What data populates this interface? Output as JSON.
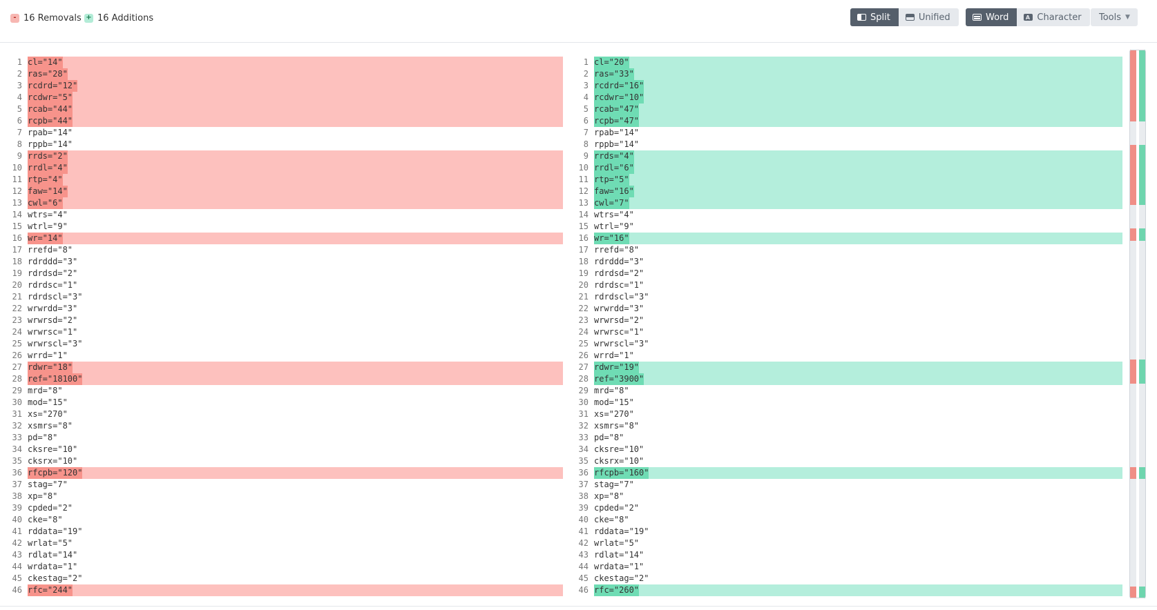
{
  "header": {
    "removals_icon": "-",
    "removals_label": "16 Removals",
    "additions_icon": "+",
    "additions_label": "16 Additions",
    "view_modes": [
      {
        "label": "Split",
        "icon": "split-view-icon",
        "active": true
      },
      {
        "label": "Unified",
        "icon": "unified-view-icon",
        "active": false
      }
    ],
    "granularity": [
      {
        "label": "Word",
        "icon": "word-mode-icon",
        "active": true
      },
      {
        "label": "Character",
        "icon": "character-mode-icon",
        "active": false
      }
    ],
    "tools_label": "Tools",
    "tools_chevron": "▼"
  },
  "colors": {
    "removed_line": "#fdc1be",
    "removed_word": "#f7938b",
    "added_line": "#b4eedc",
    "added_word": "#6fdcb4"
  },
  "diff": {
    "left": [
      {
        "n": "1",
        "t": "cl=\"14\"",
        "c": true
      },
      {
        "n": "2",
        "t": "ras=\"28\"",
        "c": true
      },
      {
        "n": "3",
        "t": "rcdrd=\"12\"",
        "c": true
      },
      {
        "n": "4",
        "t": "rcdwr=\"5\"",
        "c": true
      },
      {
        "n": "5",
        "t": "rcab=\"44\"",
        "c": true
      },
      {
        "n": "6",
        "t": "rcpb=\"44\"",
        "c": true
      },
      {
        "n": "7",
        "t": "rpab=\"14\"",
        "c": false
      },
      {
        "n": "8",
        "t": "rppb=\"14\"",
        "c": false
      },
      {
        "n": "9",
        "t": "rrds=\"2\"",
        "c": true
      },
      {
        "n": "10",
        "t": "rrdl=\"4\"",
        "c": true
      },
      {
        "n": "11",
        "t": "rtp=\"4\"",
        "c": true
      },
      {
        "n": "12",
        "t": "faw=\"14\"",
        "c": true
      },
      {
        "n": "13",
        "t": "cwl=\"6\"",
        "c": true
      },
      {
        "n": "14",
        "t": "wtrs=\"4\"",
        "c": false
      },
      {
        "n": "15",
        "t": "wtrl=\"9\"",
        "c": false
      },
      {
        "n": "16",
        "t": "wr=\"14\"",
        "c": true
      },
      {
        "n": "17",
        "t": "rrefd=\"8\"",
        "c": false
      },
      {
        "n": "18",
        "t": "rdrddd=\"3\"",
        "c": false
      },
      {
        "n": "19",
        "t": "rdrdsd=\"2\"",
        "c": false
      },
      {
        "n": "20",
        "t": "rdrdsc=\"1\"",
        "c": false
      },
      {
        "n": "21",
        "t": "rdrdscl=\"3\"",
        "c": false
      },
      {
        "n": "22",
        "t": "wrwrdd=\"3\"",
        "c": false
      },
      {
        "n": "23",
        "t": "wrwrsd=\"2\"",
        "c": false
      },
      {
        "n": "24",
        "t": "wrwrsc=\"1\"",
        "c": false
      },
      {
        "n": "25",
        "t": "wrwrscl=\"3\"",
        "c": false
      },
      {
        "n": "26",
        "t": "wrrd=\"1\"",
        "c": false
      },
      {
        "n": "27",
        "t": "rdwr=\"18\"",
        "c": true
      },
      {
        "n": "28",
        "t": "ref=\"18100\"",
        "c": true
      },
      {
        "n": "29",
        "t": "mrd=\"8\"",
        "c": false
      },
      {
        "n": "30",
        "t": "mod=\"15\"",
        "c": false
      },
      {
        "n": "31",
        "t": "xs=\"270\"",
        "c": false
      },
      {
        "n": "32",
        "t": "xsmrs=\"8\"",
        "c": false
      },
      {
        "n": "33",
        "t": "pd=\"8\"",
        "c": false
      },
      {
        "n": "34",
        "t": "cksre=\"10\"",
        "c": false
      },
      {
        "n": "35",
        "t": "cksrx=\"10\"",
        "c": false
      },
      {
        "n": "36",
        "t": "rfcpb=\"120\"",
        "c": true
      },
      {
        "n": "37",
        "t": "stag=\"7\"",
        "c": false
      },
      {
        "n": "38",
        "t": "xp=\"8\"",
        "c": false
      },
      {
        "n": "39",
        "t": "cpded=\"2\"",
        "c": false
      },
      {
        "n": "40",
        "t": "cke=\"8\"",
        "c": false
      },
      {
        "n": "41",
        "t": "rddata=\"19\"",
        "c": false
      },
      {
        "n": "42",
        "t": "wrlat=\"5\"",
        "c": false
      },
      {
        "n": "43",
        "t": "rdlat=\"14\"",
        "c": false
      },
      {
        "n": "44",
        "t": "wrdata=\"1\"",
        "c": false
      },
      {
        "n": "45",
        "t": "ckestag=\"2\"",
        "c": false
      },
      {
        "n": "46",
        "t": "rfc=\"244\"",
        "c": true
      }
    ],
    "right": [
      {
        "n": "1",
        "t": "cl=\"20\"",
        "c": true
      },
      {
        "n": "2",
        "t": "ras=\"33\"",
        "c": true
      },
      {
        "n": "3",
        "t": "rcdrd=\"16\"",
        "c": true
      },
      {
        "n": "4",
        "t": "rcdwr=\"10\"",
        "c": true
      },
      {
        "n": "5",
        "t": "rcab=\"47\"",
        "c": true
      },
      {
        "n": "6",
        "t": "rcpb=\"47\"",
        "c": true
      },
      {
        "n": "7",
        "t": "rpab=\"14\"",
        "c": false
      },
      {
        "n": "8",
        "t": "rppb=\"14\"",
        "c": false
      },
      {
        "n": "9",
        "t": "rrds=\"4\"",
        "c": true
      },
      {
        "n": "10",
        "t": "rrdl=\"6\"",
        "c": true
      },
      {
        "n": "11",
        "t": "rtp=\"5\"",
        "c": true
      },
      {
        "n": "12",
        "t": "faw=\"16\"",
        "c": true
      },
      {
        "n": "13",
        "t": "cwl=\"7\"",
        "c": true
      },
      {
        "n": "14",
        "t": "wtrs=\"4\"",
        "c": false
      },
      {
        "n": "15",
        "t": "wtrl=\"9\"",
        "c": false
      },
      {
        "n": "16",
        "t": "wr=\"16\"",
        "c": true
      },
      {
        "n": "17",
        "t": "rrefd=\"8\"",
        "c": false
      },
      {
        "n": "18",
        "t": "rdrddd=\"3\"",
        "c": false
      },
      {
        "n": "19",
        "t": "rdrdsd=\"2\"",
        "c": false
      },
      {
        "n": "20",
        "t": "rdrdsc=\"1\"",
        "c": false
      },
      {
        "n": "21",
        "t": "rdrdscl=\"3\"",
        "c": false
      },
      {
        "n": "22",
        "t": "wrwrdd=\"3\"",
        "c": false
      },
      {
        "n": "23",
        "t": "wrwrsd=\"2\"",
        "c": false
      },
      {
        "n": "24",
        "t": "wrwrsc=\"1\"",
        "c": false
      },
      {
        "n": "25",
        "t": "wrwrscl=\"3\"",
        "c": false
      },
      {
        "n": "26",
        "t": "wrrd=\"1\"",
        "c": false
      },
      {
        "n": "27",
        "t": "rdwr=\"19\"",
        "c": true
      },
      {
        "n": "28",
        "t": "ref=\"3900\"",
        "c": true
      },
      {
        "n": "29",
        "t": "mrd=\"8\"",
        "c": false
      },
      {
        "n": "30",
        "t": "mod=\"15\"",
        "c": false
      },
      {
        "n": "31",
        "t": "xs=\"270\"",
        "c": false
      },
      {
        "n": "32",
        "t": "xsmrs=\"8\"",
        "c": false
      },
      {
        "n": "33",
        "t": "pd=\"8\"",
        "c": false
      },
      {
        "n": "34",
        "t": "cksre=\"10\"",
        "c": false
      },
      {
        "n": "35",
        "t": "cksrx=\"10\"",
        "c": false
      },
      {
        "n": "36",
        "t": "rfcpb=\"160\"",
        "c": true
      },
      {
        "n": "37",
        "t": "stag=\"7\"",
        "c": false
      },
      {
        "n": "38",
        "t": "xp=\"8\"",
        "c": false
      },
      {
        "n": "39",
        "t": "cpded=\"2\"",
        "c": false
      },
      {
        "n": "40",
        "t": "cke=\"8\"",
        "c": false
      },
      {
        "n": "41",
        "t": "rddata=\"19\"",
        "c": false
      },
      {
        "n": "42",
        "t": "wrlat=\"5\"",
        "c": false
      },
      {
        "n": "43",
        "t": "rdlat=\"14\"",
        "c": false
      },
      {
        "n": "44",
        "t": "wrdata=\"1\"",
        "c": false
      },
      {
        "n": "45",
        "t": "ckestag=\"2\"",
        "c": false
      },
      {
        "n": "46",
        "t": "rfc=\"260\"",
        "c": true
      }
    ]
  }
}
